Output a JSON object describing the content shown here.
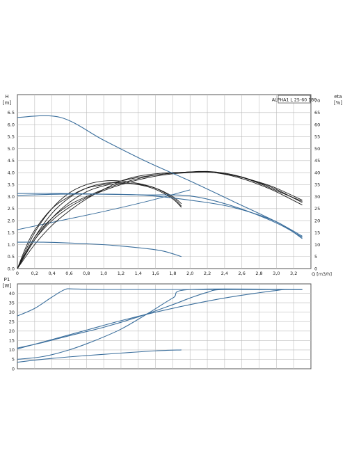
{
  "chart_data": [
    {
      "type": "line",
      "title": "ALPHA1 L 25-60 180",
      "ylabel": "H",
      "ylabel_unit": "[m]",
      "y2label": "eta",
      "y2label_unit": "[%]",
      "xlabel": "Q [m3/h]",
      "xlim": [
        0,
        3.4
      ],
      "ylim": [
        0,
        7.25
      ],
      "y2lim": [
        0,
        72.5
      ],
      "x_ticks": [
        "0",
        "0,2",
        "0,4",
        "0,6",
        "0,8",
        "1,0",
        "1,2",
        "1,4",
        "1,6",
        "1,8",
        "2,0",
        "2,2",
        "2,4",
        "2,6",
        "2,8",
        "3,0",
        "3,2"
      ],
      "y_ticks": [
        "0.0",
        "0.5",
        "1.0",
        "1.5",
        "2.0",
        "2.5",
        "3.0",
        "3.5",
        "4.0",
        "4.5",
        "5.0",
        "5.5",
        "6.0",
        "6.5"
      ],
      "y2_ticks": [
        "0",
        "5",
        "10",
        "15",
        "20",
        "25",
        "30",
        "35",
        "40",
        "45",
        "50",
        "55",
        "60",
        "65",
        "70"
      ],
      "grid": true,
      "head_series": [
        {
          "points": [
            [
              0,
              6.3
            ],
            [
              0.5,
              6.3
            ],
            [
              1.0,
              5.35
            ],
            [
              1.5,
              4.45
            ],
            [
              2.0,
              3.65
            ],
            [
              2.5,
              2.8
            ],
            [
              3.0,
              1.95
            ],
            [
              3.3,
              1.35
            ]
          ]
        },
        {
          "points": [
            [
              0,
              3.13
            ],
            [
              0.5,
              3.13
            ],
            [
              1.0,
              3.1
            ],
            [
              1.5,
              3.07
            ],
            [
              2.0,
              3.03
            ],
            [
              2.5,
              2.6
            ],
            [
              3.0,
              1.9
            ],
            [
              3.3,
              1.3
            ]
          ]
        },
        {
          "points": [
            [
              0,
              3.05
            ],
            [
              0.5,
              3.1
            ],
            [
              1.0,
              3.1
            ],
            [
              1.5,
              3.05
            ],
            [
              2.0,
              2.85
            ],
            [
              2.5,
              2.55
            ],
            [
              3.0,
              1.95
            ],
            [
              3.3,
              1.25
            ]
          ]
        },
        {
          "points": [
            [
              0,
              1.1
            ],
            [
              0.3,
              1.1
            ],
            [
              0.7,
              1.05
            ],
            [
              1.1,
              0.97
            ],
            [
              1.5,
              0.83
            ],
            [
              1.7,
              0.72
            ],
            [
              1.9,
              0.5
            ]
          ]
        }
      ],
      "eta_series": [
        {
          "points": [
            [
              0,
              0
            ],
            [
              0.1,
              9
            ],
            [
              0.2,
              16
            ],
            [
              0.4,
              25
            ],
            [
              0.6,
              30
            ],
            [
              0.8,
              33.5
            ],
            [
              1.0,
              35
            ],
            [
              1.2,
              36.5
            ],
            [
              1.4,
              38
            ],
            [
              1.6,
              39
            ],
            [
              1.8,
              39.8
            ],
            [
              2.0,
              40.3
            ],
            [
              2.2,
              40.3
            ],
            [
              2.4,
              39.3
            ],
            [
              2.6,
              37.5
            ],
            [
              2.8,
              35
            ],
            [
              3.0,
              32
            ],
            [
              3.3,
              26.5
            ]
          ]
        },
        {
          "points": [
            [
              0,
              0
            ],
            [
              0.2,
              13
            ],
            [
              0.4,
              21
            ],
            [
              0.6,
              26.5
            ],
            [
              0.8,
              30
            ],
            [
              1.0,
              33
            ],
            [
              1.2,
              35.5
            ],
            [
              1.4,
              37.5
            ],
            [
              1.6,
              39
            ],
            [
              1.8,
              39.8
            ],
            [
              2.0,
              40.3
            ],
            [
              2.2,
              40.5
            ],
            [
              2.4,
              39.8
            ],
            [
              2.6,
              38.2
            ],
            [
              2.8,
              35.8
            ],
            [
              3.0,
              33
            ],
            [
              3.3,
              27.5
            ]
          ]
        },
        {
          "points": [
            [
              0,
              0
            ],
            [
              0.2,
              12
            ],
            [
              0.4,
              20
            ],
            [
              0.6,
              25.5
            ],
            [
              0.8,
              29.5
            ],
            [
              1.0,
              32.5
            ],
            [
              1.2,
              35
            ],
            [
              1.4,
              37
            ],
            [
              1.6,
              38.5
            ],
            [
              1.8,
              39.5
            ],
            [
              2.0,
              40
            ],
            [
              2.2,
              40.2
            ],
            [
              2.4,
              39.5
            ],
            [
              2.6,
              38
            ],
            [
              2.8,
              35.5
            ],
            [
              3.0,
              32.5
            ],
            [
              3.3,
              28
            ]
          ]
        },
        {
          "points": [
            [
              0,
              0
            ],
            [
              0.2,
              10
            ],
            [
              0.4,
              18
            ],
            [
              0.6,
              24
            ],
            [
              0.8,
              29
            ],
            [
              1.0,
              33
            ],
            [
              1.2,
              36.5
            ],
            [
              1.4,
              38.5
            ],
            [
              1.6,
              39.5
            ],
            [
              1.8,
              40
            ],
            [
              2.0,
              40.2
            ],
            [
              2.1,
              40.5
            ],
            [
              2.2,
              40.3
            ],
            [
              2.4,
              39.5
            ],
            [
              2.6,
              38
            ],
            [
              2.8,
              36
            ],
            [
              3.0,
              33.5
            ],
            [
              3.3,
              28.5
            ]
          ]
        },
        {
          "points": [
            [
              0,
              0
            ],
            [
              0.2,
              13
            ],
            [
              0.4,
              23
            ],
            [
              0.6,
              29.5
            ],
            [
              0.8,
              33.5
            ],
            [
              1.0,
              35.5
            ],
            [
              1.2,
              35.8
            ],
            [
              1.4,
              35
            ],
            [
              1.6,
              33
            ],
            [
              1.8,
              29
            ],
            [
              1.9,
              25.5
            ]
          ]
        },
        {
          "points": [
            [
              0,
              0
            ],
            [
              0.2,
              12
            ],
            [
              0.4,
              21
            ],
            [
              0.6,
              27.5
            ],
            [
              0.8,
              32
            ],
            [
              1.0,
              34.5
            ],
            [
              1.2,
              35.5
            ],
            [
              1.4,
              35.2
            ],
            [
              1.6,
              33.5
            ],
            [
              1.8,
              30
            ],
            [
              1.9,
              27
            ]
          ]
        },
        {
          "points": [
            [
              0,
              0
            ],
            [
              0.2,
              15
            ],
            [
              0.4,
              25
            ],
            [
              0.6,
              31.5
            ],
            [
              0.8,
              35
            ],
            [
              1.0,
              36.5
            ],
            [
              1.2,
              36.5
            ],
            [
              1.4,
              35.5
            ],
            [
              1.6,
              33.5
            ],
            [
              1.8,
              29.5
            ],
            [
              1.9,
              26
            ]
          ]
        }
      ],
      "system_series": [
        {
          "points": [
            [
              0,
              1.62
            ],
            [
              0.5,
              2.0
            ],
            [
              1.0,
              2.38
            ],
            [
              1.5,
              2.8
            ],
            [
              2.0,
              3.28
            ]
          ]
        }
      ]
    },
    {
      "type": "line",
      "ylabel": "P1",
      "ylabel_unit": "[W]",
      "xlim": [
        0,
        3.4
      ],
      "ylim": [
        0,
        45
      ],
      "y_ticks": [
        "0",
        "5",
        "10",
        "15",
        "20",
        "25",
        "30",
        "35",
        "40"
      ],
      "grid": true,
      "series": [
        {
          "points": [
            [
              0,
              28
            ],
            [
              0.2,
              32
            ],
            [
              0.4,
              38
            ],
            [
              0.55,
              42
            ],
            [
              0.65,
              42.3
            ],
            [
              1.0,
              42
            ],
            [
              2.0,
              42
            ],
            [
              3.3,
              42
            ]
          ]
        },
        {
          "points": [
            [
              0,
              11
            ],
            [
              0.3,
              14
            ],
            [
              0.6,
              17.5
            ],
            [
              1.0,
              22
            ],
            [
              1.4,
              27.5
            ],
            [
              1.8,
              34
            ],
            [
              2.0,
              37.5
            ],
            [
              2.2,
              40.5
            ],
            [
              2.4,
              42
            ],
            [
              3.3,
              42
            ]
          ]
        },
        {
          "points": [
            [
              0,
              10.5
            ],
            [
              0.4,
              15.5
            ],
            [
              0.8,
              20.5
            ],
            [
              1.2,
              25.5
            ],
            [
              1.6,
              30
            ],
            [
              2.0,
              34
            ],
            [
              2.4,
              37.5
            ],
            [
              2.8,
              40.3
            ],
            [
              3.0,
              41.5
            ],
            [
              3.1,
              42
            ],
            [
              3.3,
              42
            ]
          ]
        },
        {
          "points": [
            [
              0,
              5
            ],
            [
              0.3,
              6.5
            ],
            [
              0.6,
              10
            ],
            [
              0.9,
              15
            ],
            [
              1.2,
              21
            ],
            [
              1.5,
              29
            ],
            [
              1.8,
              37.5
            ],
            [
              2.0,
              42
            ],
            [
              3.3,
              42
            ]
          ]
        },
        {
          "points": [
            [
              0,
              3.5
            ],
            [
              0.4,
              5.5
            ],
            [
              0.8,
              7
            ],
            [
              1.2,
              8.3
            ],
            [
              1.6,
              9.5
            ],
            [
              1.9,
              10
            ]
          ]
        }
      ]
    }
  ]
}
